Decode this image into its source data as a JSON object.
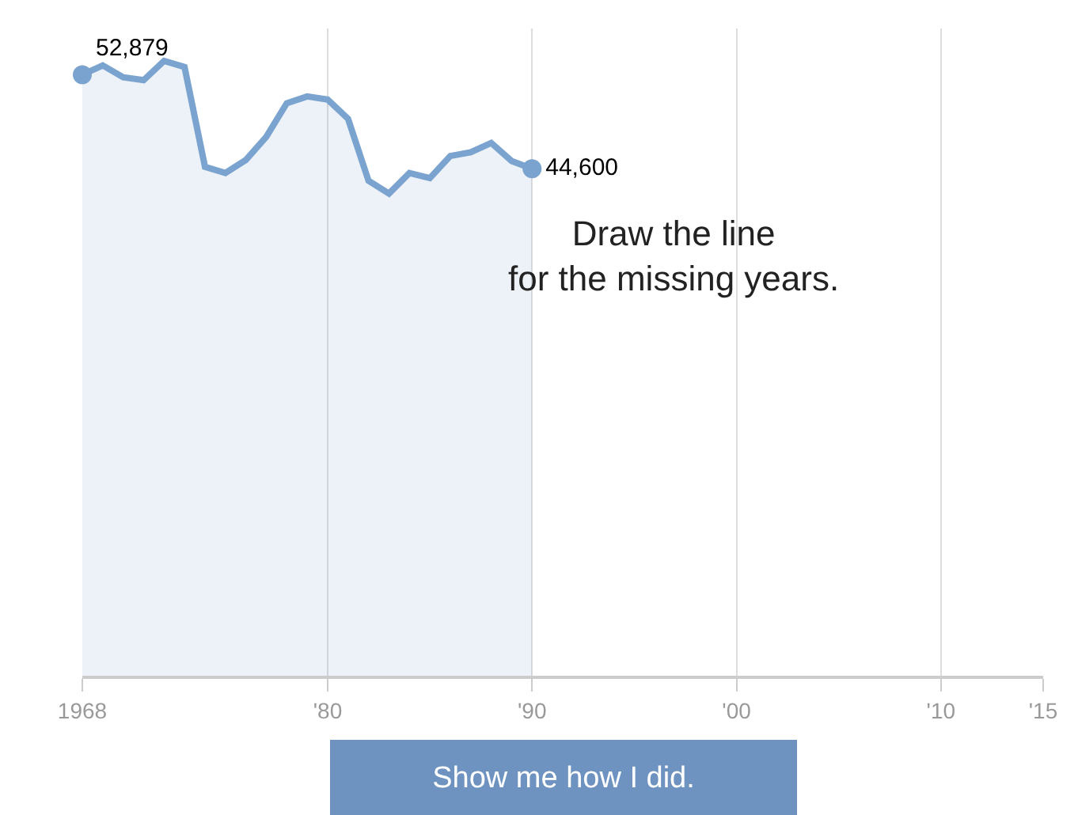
{
  "chart_data": {
    "type": "area",
    "x": [
      1968,
      1969,
      1970,
      1971,
      1972,
      1973,
      1974,
      1975,
      1976,
      1977,
      1978,
      1979,
      1980,
      1981,
      1982,
      1983,
      1984,
      1985,
      1986,
      1987,
      1988,
      1989,
      1990
    ],
    "series": [
      {
        "color": "#7ba3cf",
        "values": [
          52879,
          53700,
          52650,
          52400,
          54100,
          53560,
          44780,
          44230,
          45380,
          47420,
          50370,
          50970,
          50700,
          49000,
          43550,
          42420,
          44230,
          43780,
          45730,
          46060,
          46880,
          45280,
          44600
        ],
        "value_labels": [
          "52,879",
          null,
          null,
          null,
          null,
          null,
          null,
          null,
          null,
          null,
          null,
          null,
          null,
          null,
          null,
          null,
          null,
          null,
          null,
          null,
          null,
          null,
          "44,600"
        ]
      }
    ],
    "xlim": [
      1968,
      2015
    ],
    "xticks": [
      {
        "value": 1968,
        "label": "1968"
      },
      {
        "value": 1980,
        "label": "'80"
      },
      {
        "value": 1990,
        "label": "'90"
      },
      {
        "value": 2000,
        "label": "'00"
      },
      {
        "value": 2010,
        "label": "'10"
      },
      {
        "value": 2015,
        "label": "'15"
      }
    ],
    "grid": "x",
    "tick_labels": "x",
    "annotations": [
      "Draw the line\nfor the missing years.",
      "Show me how I did."
    ]
  }
}
